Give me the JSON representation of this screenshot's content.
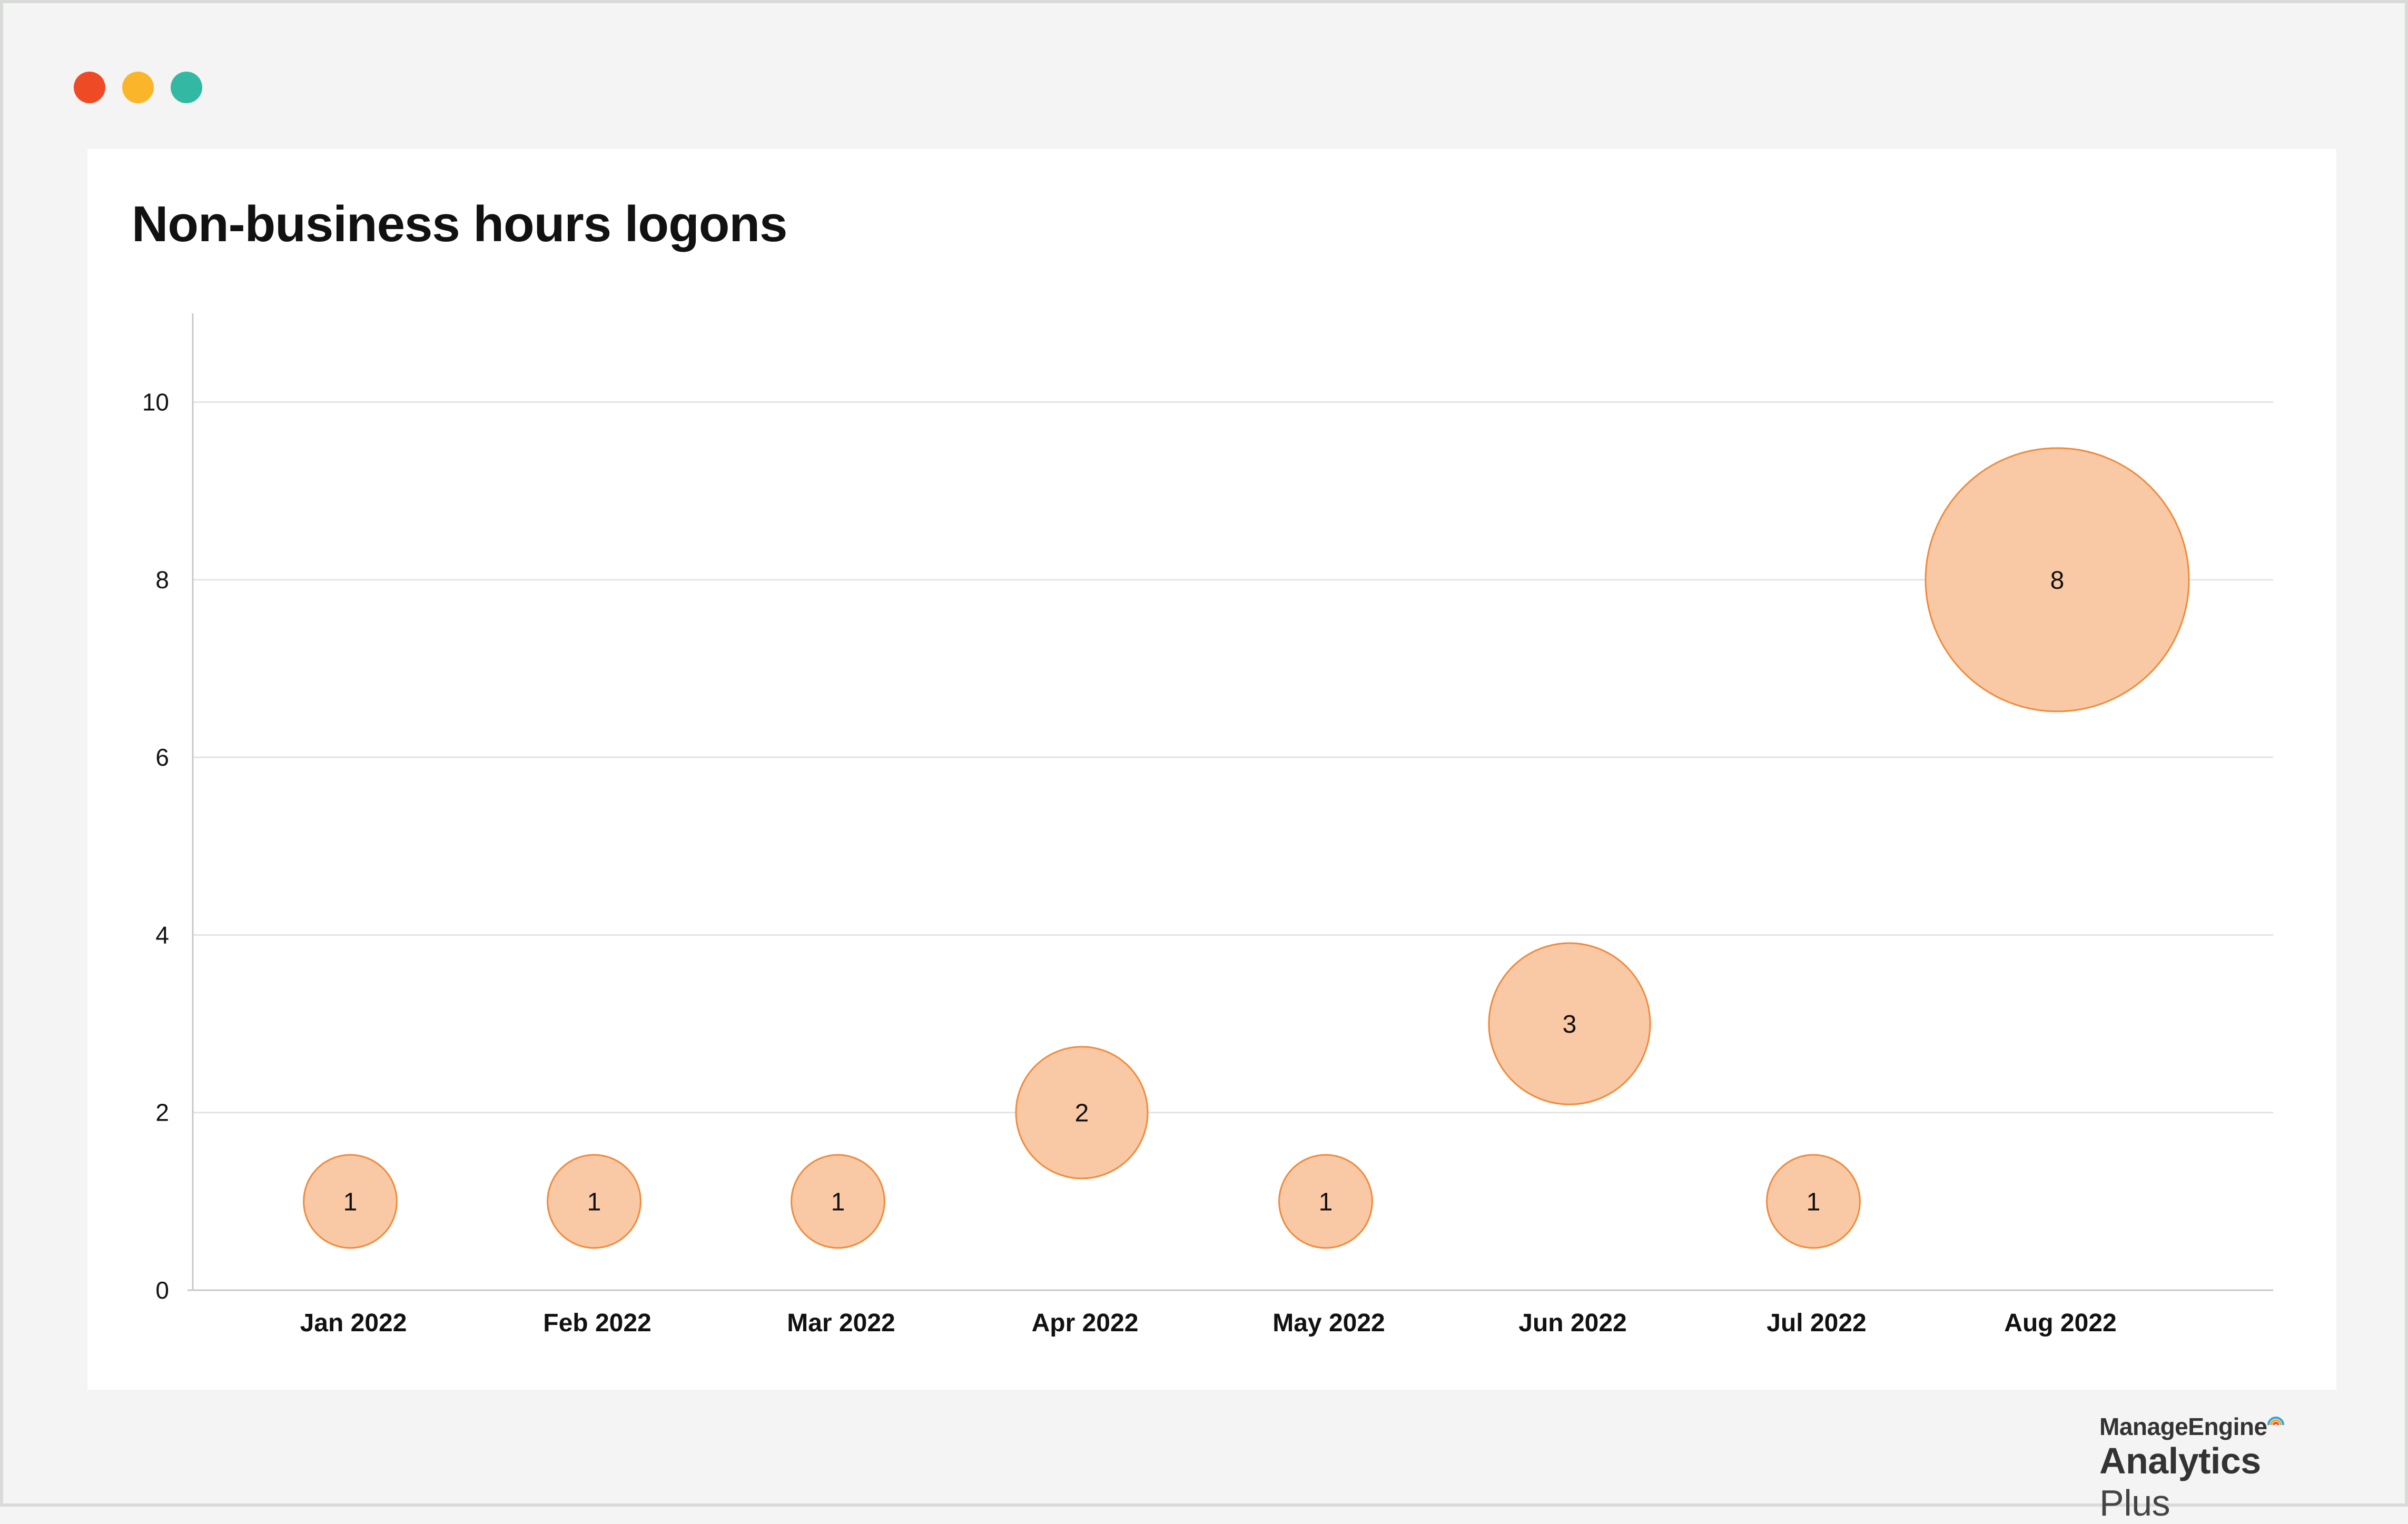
{
  "window": {
    "controls": [
      "close",
      "minimize",
      "maximize"
    ],
    "control_colors": [
      "#ef4a26",
      "#fbb52a",
      "#33b8a4"
    ]
  },
  "chart_data": {
    "type": "scatter",
    "subtype": "bubble",
    "title": "Non-business hours logons",
    "xlabel": "",
    "ylabel": "",
    "categories": [
      "Jan 2022",
      "Feb 2022",
      "Mar 2022",
      "Apr 2022",
      "May 2022",
      "Jun 2022",
      "Jul 2022",
      "Aug 2022"
    ],
    "values": [
      1,
      1,
      1,
      2,
      1,
      3,
      1,
      8
    ],
    "data_labels": [
      "1",
      "1",
      "1",
      "2",
      "1",
      "3",
      "1",
      "8"
    ],
    "ylim": [
      0,
      11
    ],
    "yticks": [
      0,
      2,
      4,
      6,
      8,
      10
    ],
    "grid": true,
    "legend": "none",
    "colors": {
      "bubble_fill": "#f9c9a6",
      "bubble_stroke": "#f08a3a",
      "grid": "#e4e4e4",
      "axis": "#c8c8c8"
    }
  },
  "branding": {
    "company": "ManageEngine",
    "product_word_1": "Analytics",
    "product_word_2": "Plus"
  }
}
